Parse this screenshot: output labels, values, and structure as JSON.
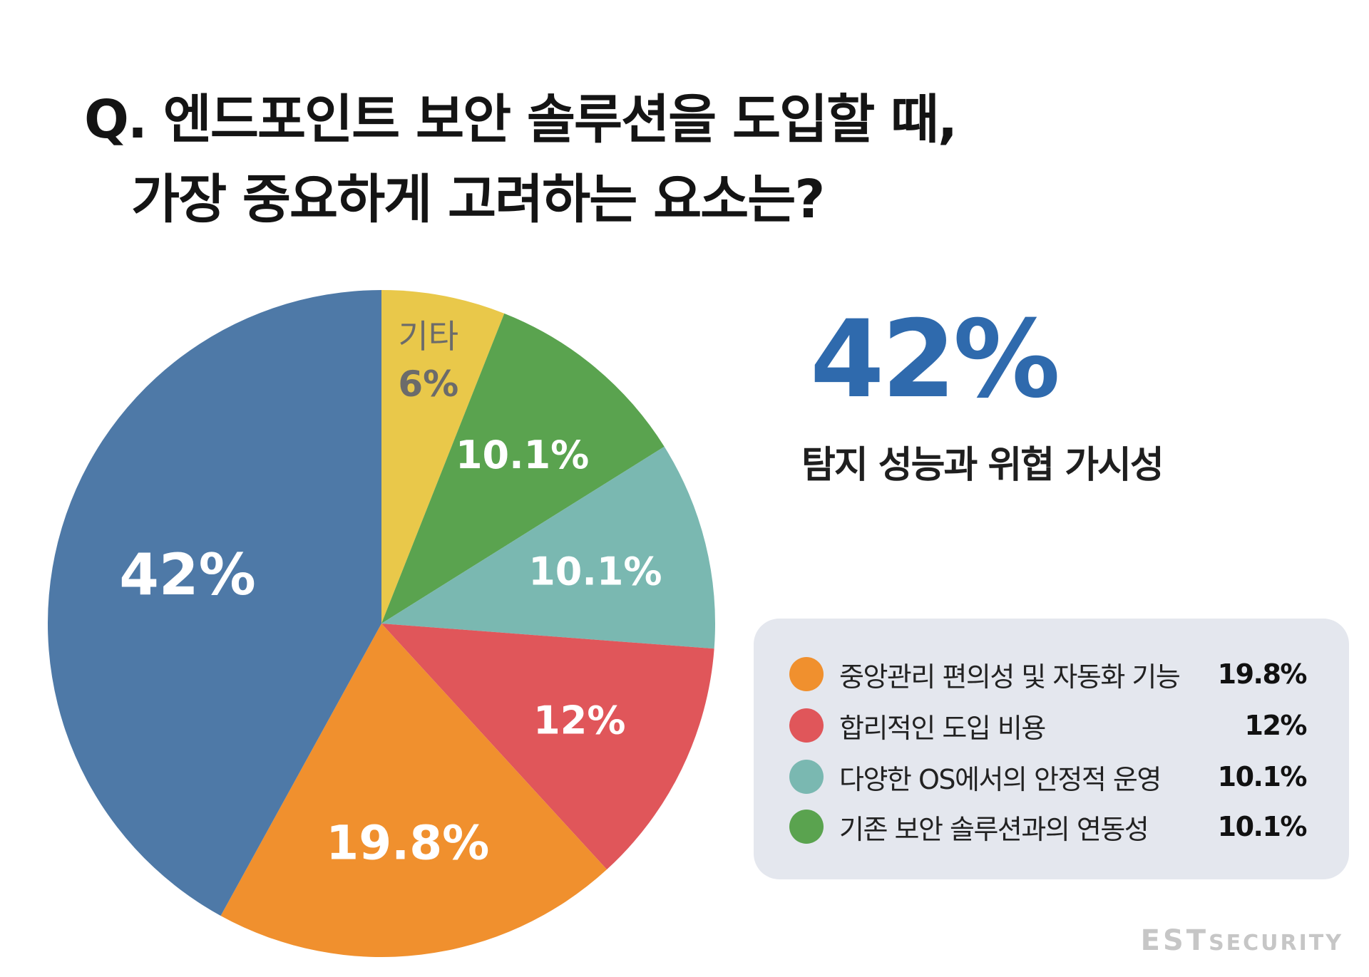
{
  "title": {
    "line1": "Q. 엔드포인트 보안 솔루션을 도입할 때,",
    "line2": "가장 중요하게 고려하는 요소는?"
  },
  "highlight": {
    "value": "42%",
    "label": "탐지 성능과 위협 가시성"
  },
  "chart_data": {
    "type": "pie",
    "slices": [
      {
        "label": "기타",
        "value": 6,
        "value_label": "6%",
        "color": "#e9c84a",
        "text_color": "#6b6b6b"
      },
      {
        "label": "기존 보안 솔루션과의 연동성",
        "value": 10.1,
        "value_label": "10.1%",
        "color": "#5aa34f",
        "text_color": "#ffffff"
      },
      {
        "label": "다양한 OS에서의 안정적 운영",
        "value": 10.1,
        "value_label": "10.1%",
        "color": "#7ab8b1",
        "text_color": "#ffffff"
      },
      {
        "label": "합리적인 도입 비용",
        "value": 12,
        "value_label": "12%",
        "color": "#e0565a",
        "text_color": "#ffffff"
      },
      {
        "label": "중앙관리 편의성 및 자동화 기능",
        "value": 19.8,
        "value_label": "19.8%",
        "color": "#f0902e",
        "text_color": "#ffffff"
      },
      {
        "label": "탐지 성능과 위협 가시성",
        "value": 42,
        "value_label": "42%",
        "color": "#4e79a7",
        "text_color": "#ffffff"
      }
    ],
    "legend": [
      {
        "label": "중앙관리 편의성 및 자동화 기능",
        "value": "19.8%",
        "color": "#f0902e"
      },
      {
        "label": "합리적인 도입 비용",
        "value": "12%",
        "color": "#e0565a"
      },
      {
        "label": "다양한 OS에서의 안정적 운영",
        "value": "10.1%",
        "color": "#7ab8b1"
      },
      {
        "label": "기존 보안 솔루션과의 연동성",
        "value": "10.1%",
        "color": "#5aa34f"
      }
    ],
    "legend_placement": "bottom-right"
  },
  "brand": {
    "part1": "EST",
    "part2": "SECURITY"
  }
}
